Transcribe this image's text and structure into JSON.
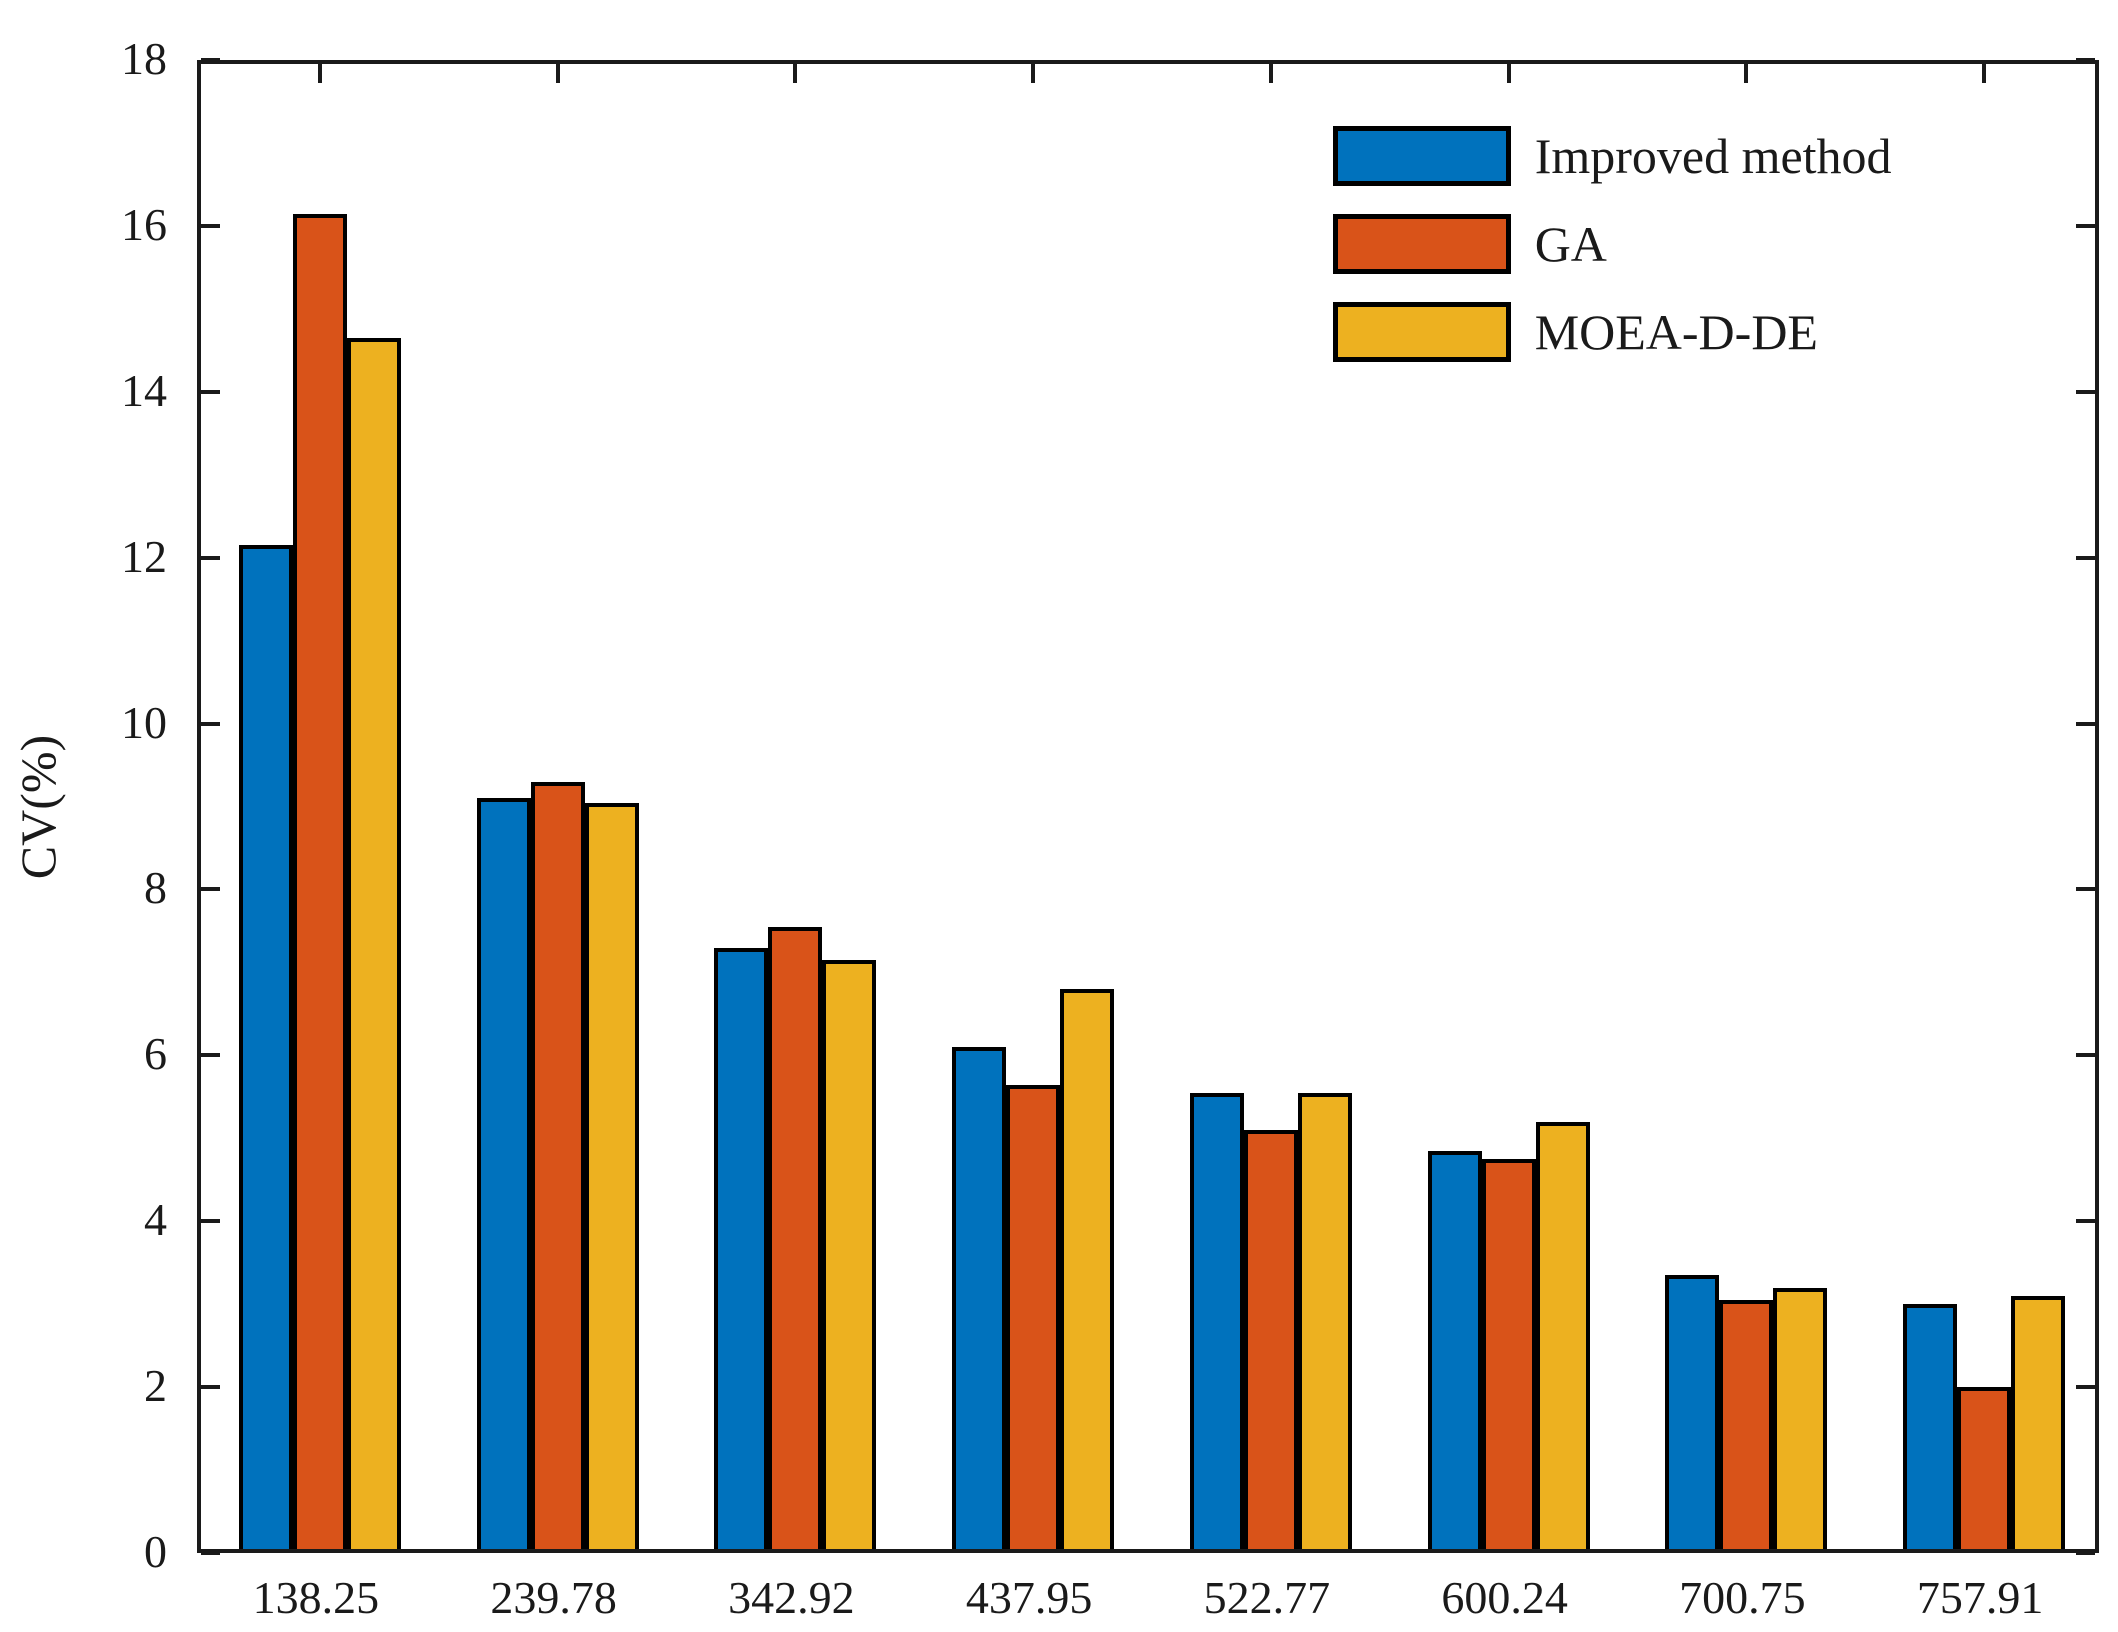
{
  "chart_data": {
    "type": "bar",
    "title": "",
    "xlabel": "",
    "ylabel": "CV(%)",
    "ylim": [
      0,
      18
    ],
    "ytick_step": 2,
    "ytick_labels": [
      "0",
      "2",
      "4",
      "6",
      "8",
      "10",
      "12",
      "14",
      "16",
      "18"
    ],
    "grid": false,
    "legend_position": "top-right-inside",
    "categories": [
      "138.25",
      "239.78",
      "342.92",
      "437.95",
      "522.77",
      "600.24",
      "700.75",
      "757.91"
    ],
    "series": [
      {
        "name": "Improved method",
        "color": "#0072BD",
        "values": [
          12.1,
          9.05,
          7.25,
          6.05,
          5.5,
          4.8,
          3.3,
          2.95
        ]
      },
      {
        "name": "GA",
        "color": "#D95319",
        "values": [
          16.1,
          9.25,
          7.5,
          5.6,
          5.05,
          4.7,
          3.0,
          1.95
        ]
      },
      {
        "name": "MOEA-D-DE",
        "color": "#EDB120",
        "values": [
          14.6,
          9.0,
          7.1,
          6.75,
          5.5,
          5.15,
          3.15,
          3.05
        ]
      }
    ],
    "frame_color": "#1a1a1a",
    "bar_edge_color": "#000000"
  },
  "layout_text": {
    "ylabel": "CV(%)"
  }
}
